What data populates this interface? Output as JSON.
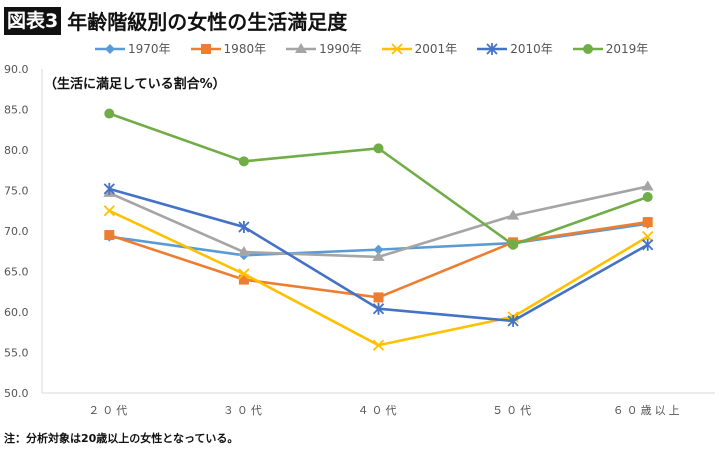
{
  "header": {
    "badge": "図表3",
    "title": "年齢階級別の女性の生活満足度"
  },
  "note": "注：分析対象は20歳以上の女性となっている。",
  "chart_data": {
    "type": "line",
    "title": "年齢階級別の女性の生活満足度",
    "ylabel": "（生活に満足している割合%）",
    "xlabel": "",
    "categories": [
      "２０代",
      "３０代",
      "４０代",
      "５０代",
      "６０歳以上"
    ],
    "ylim": [
      50,
      90
    ],
    "yticks": [
      "50.0",
      "55.0",
      "60.0",
      "65.0",
      "70.0",
      "75.0",
      "80.0",
      "85.0",
      "90.0"
    ],
    "grid": false,
    "legend": "top",
    "series": [
      {
        "name": "1970年",
        "color": "#5b9bd5",
        "marker": "diamond",
        "values": [
          69.3,
          67.0,
          67.7,
          68.5,
          70.9
        ]
      },
      {
        "name": "1980年",
        "color": "#ed7d31",
        "marker": "square",
        "values": [
          69.5,
          64.0,
          61.8,
          68.6,
          71.1
        ]
      },
      {
        "name": "1990年",
        "color": "#a5a5a5",
        "marker": "triangle",
        "values": [
          74.7,
          67.4,
          66.8,
          71.9,
          75.5
        ]
      },
      {
        "name": "2001年",
        "color": "#ffc000",
        "marker": "x",
        "values": [
          72.5,
          64.7,
          55.9,
          59.4,
          69.3
        ]
      },
      {
        "name": "2010年",
        "color": "#4472c4",
        "marker": "star",
        "values": [
          75.2,
          70.5,
          60.4,
          58.9,
          68.3
        ]
      },
      {
        "name": "2019年",
        "color": "#70ad47",
        "marker": "circle",
        "values": [
          84.5,
          78.6,
          80.2,
          68.3,
          74.2
        ]
      }
    ]
  }
}
